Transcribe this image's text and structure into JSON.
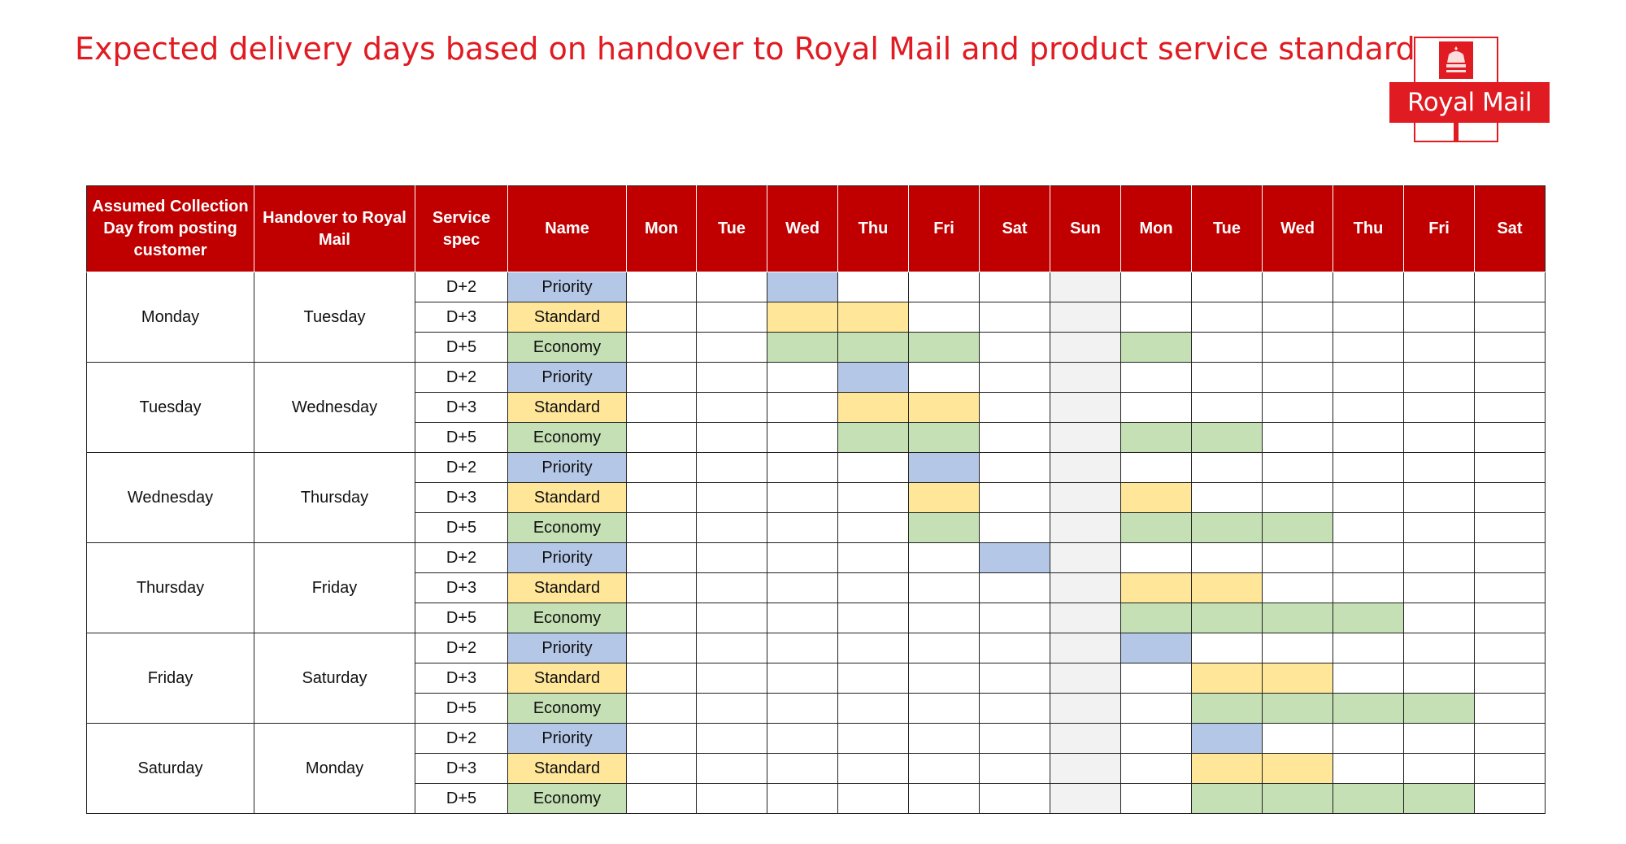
{
  "title": "Expected delivery days based on handover to Royal Mail and product service standard",
  "logo": {
    "text": "Royal Mail"
  },
  "colors": {
    "title": "#e01b22",
    "header_bg": "#c00000",
    "priority": "#b4c7e7",
    "standard": "#ffe699",
    "economy": "#c5e0b4",
    "sunday": "#f2f2f2"
  },
  "headers": {
    "collection": "Assumed Collection Day from posting customer",
    "handover": "Handover to Royal Mail",
    "service_spec": "Service spec",
    "name": "Name",
    "days": [
      "Mon",
      "Tue",
      "Wed",
      "Thu",
      "Fri",
      "Sat",
      "Sun",
      "Mon",
      "Tue",
      "Wed",
      "Thu",
      "Fri",
      "Sat"
    ]
  },
  "sunday_column": 6,
  "groups": [
    {
      "collection": "Monday",
      "handover": "Tuesday",
      "rows": [
        {
          "spec": "D+2",
          "name": "Priority",
          "type": "priority",
          "days": [
            2
          ]
        },
        {
          "spec": "D+3",
          "name": "Standard",
          "type": "standard",
          "days": [
            2,
            3
          ]
        },
        {
          "spec": "D+5",
          "name": "Economy",
          "type": "economy",
          "days": [
            2,
            3,
            4,
            7
          ]
        }
      ]
    },
    {
      "collection": "Tuesday",
      "handover": "Wednesday",
      "rows": [
        {
          "spec": "D+2",
          "name": "Priority",
          "type": "priority",
          "days": [
            3
          ]
        },
        {
          "spec": "D+3",
          "name": "Standard",
          "type": "standard",
          "days": [
            3,
            4
          ]
        },
        {
          "spec": "D+5",
          "name": "Economy",
          "type": "economy",
          "days": [
            3,
            4,
            7,
            8
          ]
        }
      ]
    },
    {
      "collection": "Wednesday",
      "handover": "Thursday",
      "rows": [
        {
          "spec": "D+2",
          "name": "Priority",
          "type": "priority",
          "days": [
            4
          ]
        },
        {
          "spec": "D+3",
          "name": "Standard",
          "type": "standard",
          "days": [
            4,
            7
          ]
        },
        {
          "spec": "D+5",
          "name": "Economy",
          "type": "economy",
          "days": [
            4,
            7,
            8,
            9
          ]
        }
      ]
    },
    {
      "collection": "Thursday",
      "handover": "Friday",
      "rows": [
        {
          "spec": "D+2",
          "name": "Priority",
          "type": "priority",
          "days": [
            5
          ]
        },
        {
          "spec": "D+3",
          "name": "Standard",
          "type": "standard",
          "days": [
            7,
            8
          ]
        },
        {
          "spec": "D+5",
          "name": "Economy",
          "type": "economy",
          "days": [
            7,
            8,
            9,
            10
          ]
        }
      ]
    },
    {
      "collection": "Friday",
      "handover": "Saturday",
      "rows": [
        {
          "spec": "D+2",
          "name": "Priority",
          "type": "priority",
          "days": [
            7
          ]
        },
        {
          "spec": "D+3",
          "name": "Standard",
          "type": "standard",
          "days": [
            8,
            9
          ]
        },
        {
          "spec": "D+5",
          "name": "Economy",
          "type": "economy",
          "days": [
            8,
            9,
            10,
            11
          ]
        }
      ]
    },
    {
      "collection": "Saturday",
      "handover": "Monday",
      "rows": [
        {
          "spec": "D+2",
          "name": "Priority",
          "type": "priority",
          "days": [
            8
          ]
        },
        {
          "spec": "D+3",
          "name": "Standard",
          "type": "standard",
          "days": [
            8,
            9
          ]
        },
        {
          "spec": "D+5",
          "name": "Economy",
          "type": "economy",
          "days": [
            8,
            9,
            10,
            11
          ]
        }
      ]
    }
  ]
}
